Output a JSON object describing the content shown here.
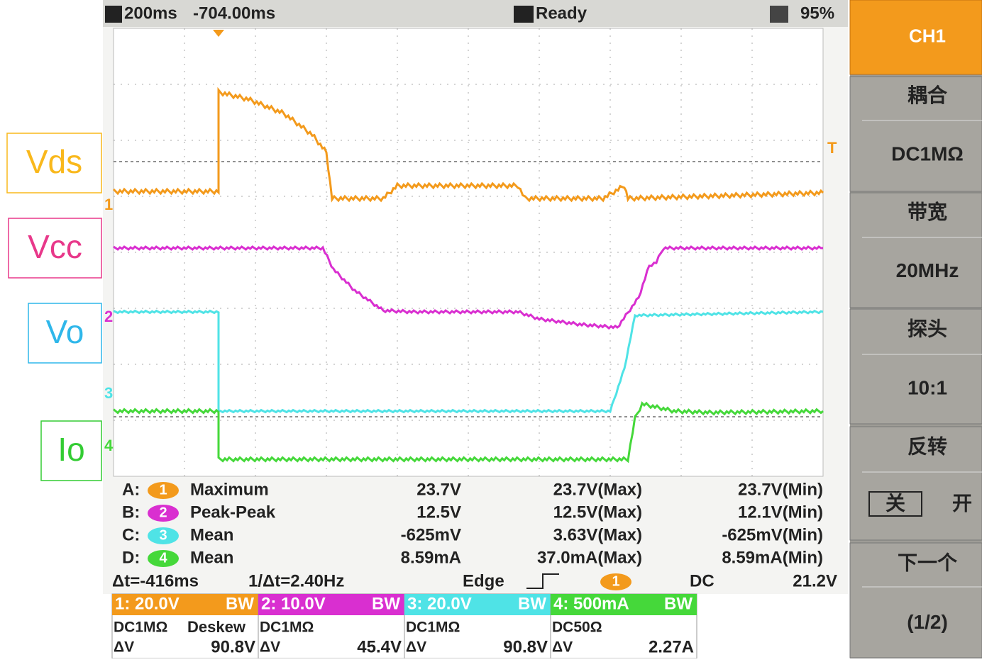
{
  "annotations": [
    "Vds",
    "Vcc",
    "Vo",
    "Io"
  ],
  "top_bar": {
    "timebase": "200ms",
    "offset": "-704.00ms",
    "status": "Ready",
    "battery": "95%"
  },
  "channel_markers": [
    "1",
    "2",
    "3",
    "4"
  ],
  "trigger_marker": "T",
  "measurements": [
    {
      "slot": "A:",
      "channel": "1",
      "type": "Maximum",
      "value": "23.7V",
      "max": "23.7V(Max)",
      "min": "23.7V(Min)"
    },
    {
      "slot": "B:",
      "channel": "2",
      "type": "Peak-Peak",
      "value": "12.5V",
      "max": "12.5V(Max)",
      "min": "12.1V(Min)"
    },
    {
      "slot": "C:",
      "channel": "3",
      "type": "Mean",
      "value": "-625mV",
      "max": "3.63V(Max)",
      "min": "-625mV(Min)"
    },
    {
      "slot": "D:",
      "channel": "4",
      "type": "Mean",
      "value": "8.59mA",
      "max": "37.0mA(Max)",
      "min": "8.59mA(Min)"
    }
  ],
  "cursor_row": {
    "delta_t": "Δt=-416ms",
    "inv_delta_t": "1/Δt=2.40Hz",
    "trigger_type": "Edge",
    "trigger_source": "1",
    "trigger_coupling": "DC",
    "trigger_level": "21.2V"
  },
  "channels": [
    {
      "scale": "1: 20.0V",
      "bw": "BW",
      "coupling": "DC1MΩ",
      "extra": "Deskew",
      "dv": "ΔV",
      "dv_value": "90.8V"
    },
    {
      "scale": "2: 10.0V",
      "bw": "BW",
      "coupling": "DC1MΩ",
      "dv": "ΔV",
      "dv_value": "45.4V"
    },
    {
      "scale": "3: 20.0V",
      "bw": "BW",
      "coupling": "DC1MΩ",
      "dv": "ΔV",
      "dv_value": "90.8V"
    },
    {
      "scale": "4: 500mA",
      "bw": "BW",
      "coupling": "DC50Ω",
      "dv": "ΔV",
      "dv_value": "2.27A"
    }
  ],
  "menu": {
    "title": "CH1",
    "coupling_label": "耦合",
    "coupling_value": "DC1MΩ",
    "bandwidth_label": "带宽",
    "bandwidth_value": "20MHz",
    "probe_label": "探头",
    "probe_value": "10:1",
    "invert_label": "反转",
    "invert_off": "关",
    "invert_on": "开",
    "next_label": "下一个",
    "page": "(1/2)"
  }
}
